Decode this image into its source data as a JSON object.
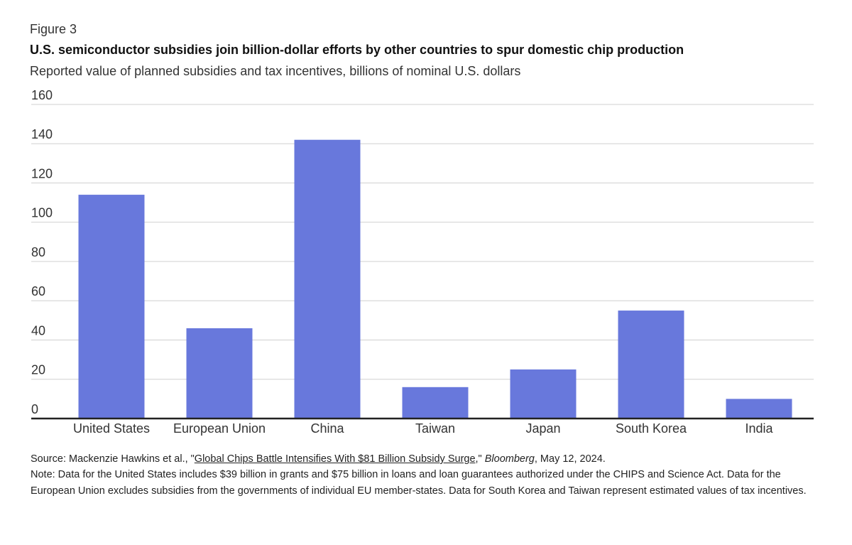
{
  "figure_label": "Figure 3",
  "chart_data": {
    "type": "bar",
    "title": "U.S. semiconductor subsidies join billion-dollar efforts by other countries to spur domestic chip production",
    "subtitle": "Reported value of planned subsidies and tax incentives, billions of nominal U.S. dollars",
    "categories": [
      "United States",
      "European Union",
      "China",
      "Taiwan",
      "Japan",
      "South Korea",
      "India"
    ],
    "values": [
      114,
      46,
      142,
      16,
      25,
      55,
      10
    ],
    "color": "#6878dc",
    "ylim": [
      0,
      160
    ],
    "yticks": [
      0,
      20,
      40,
      60,
      80,
      100,
      120,
      140,
      160
    ],
    "grid": true
  },
  "source": {
    "prefix": "Source: Mackenzie Hawkins et al., \"",
    "link": "Global Chips Battle Intensifies With $81 Billion Subsidy Surge",
    "mid": ",\" ",
    "publication": "Bloomberg",
    "suffix": ", May 12, 2024."
  },
  "note": "Note: Data for the United States includes $39 billion in grants and $75 billion in loans and loan guarantees authorized under the CHIPS and Science Act. Data for the European Union excludes subsidies from the governments of individual EU member-states. Data for South Korea and Taiwan represent estimated values of tax incentives."
}
